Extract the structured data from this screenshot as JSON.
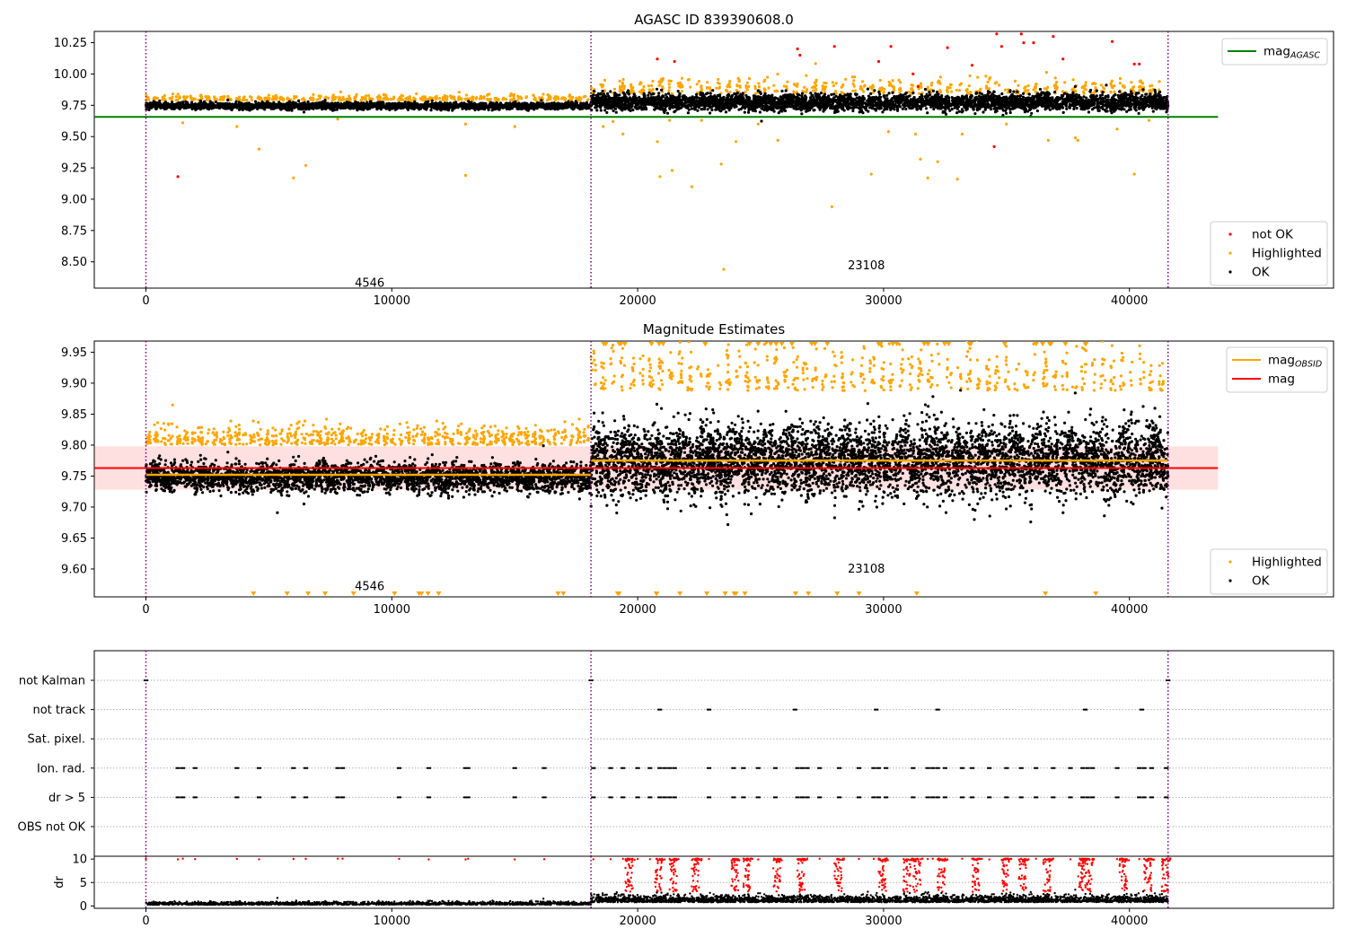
{
  "chart_data": [
    {
      "type": "scatter",
      "title": "AGASC ID 839390608.0",
      "xlim": [
        -2100,
        48300
      ],
      "ylim": [
        8.29,
        10.34
      ],
      "x_ticks": [
        0,
        10000,
        20000,
        30000,
        40000
      ],
      "x_tick_labels": [
        "0",
        "10000",
        "20000",
        "30000",
        "40000"
      ],
      "y_ticks": [
        8.5,
        8.75,
        9.0,
        9.25,
        9.5,
        9.75,
        10.0,
        10.25
      ],
      "y_tick_labels": [
        "8.50",
        "8.75",
        "9.00",
        "9.25",
        "9.50",
        "9.75",
        "10.00",
        "10.25"
      ],
      "obs_boundaries": [
        0,
        18100,
        41570
      ],
      "obs_labels": [
        {
          "text": "4546",
          "x": 9100,
          "y": 8.33
        },
        {
          "text": "23108",
          "x": 29300,
          "y": 8.47
        }
      ],
      "lines": [
        {
          "name": "mag_AGASC",
          "color": "#008000",
          "y": 9.657,
          "x": [
            -2100,
            43600
          ]
        }
      ],
      "segments": [
        {
          "x": [
            0,
            18100
          ],
          "center": 9.745,
          "spread": 0.016,
          "highlight_band": 9.795,
          "highlight_spread": 0.02
        },
        {
          "x": [
            18100,
            41570
          ],
          "center": 9.775,
          "spread": 0.04,
          "highlight_band": 9.86,
          "highlight_spread": 0.06
        }
      ],
      "outliers_orange": [
        [
          1500,
          9.61
        ],
        [
          3700,
          9.58
        ],
        [
          4600,
          9.4
        ],
        [
          6000,
          9.17
        ],
        [
          6500,
          9.27
        ],
        [
          7800,
          9.64
        ],
        [
          13000,
          9.6
        ],
        [
          13000,
          9.19
        ],
        [
          15000,
          9.58
        ],
        [
          18600,
          9.58
        ],
        [
          19000,
          9.62
        ],
        [
          19400,
          9.52
        ],
        [
          20800,
          9.46
        ],
        [
          20900,
          9.18
        ],
        [
          21300,
          9.63
        ],
        [
          21400,
          9.23
        ],
        [
          22200,
          9.1
        ],
        [
          22600,
          9.63
        ],
        [
          23400,
          9.28
        ],
        [
          23500,
          8.44
        ],
        [
          24000,
          9.46
        ],
        [
          24900,
          9.6
        ],
        [
          25700,
          9.47
        ],
        [
          27900,
          8.94
        ],
        [
          29500,
          9.2
        ],
        [
          30200,
          9.54
        ],
        [
          31300,
          9.52
        ],
        [
          31500,
          9.32
        ],
        [
          31800,
          9.17
        ],
        [
          32200,
          9.3
        ],
        [
          33000,
          9.16
        ],
        [
          33200,
          9.52
        ],
        [
          35000,
          9.6
        ],
        [
          36700,
          9.47
        ],
        [
          37800,
          9.49
        ],
        [
          37900,
          9.47
        ],
        [
          39500,
          9.56
        ],
        [
          40200,
          9.2
        ],
        [
          40800,
          9.63
        ]
      ],
      "outliers_red": [
        [
          1300,
          9.18
        ],
        [
          20800,
          10.12
        ],
        [
          21500,
          10.1
        ],
        [
          26500,
          10.2
        ],
        [
          26600,
          10.15
        ],
        [
          28000,
          10.22
        ],
        [
          30300,
          10.22
        ],
        [
          31200,
          10.0
        ],
        [
          32600,
          10.21
        ],
        [
          33600,
          10.07
        ],
        [
          34600,
          10.32
        ],
        [
          34800,
          10.22
        ],
        [
          35600,
          10.32
        ],
        [
          35700,
          10.25
        ],
        [
          36100,
          10.25
        ],
        [
          36900,
          10.3
        ],
        [
          37300,
          10.12
        ],
        [
          39300,
          10.26
        ],
        [
          40200,
          10.08
        ],
        [
          40400,
          10.08
        ],
        [
          34500,
          9.42
        ],
        [
          29800,
          10.1
        ],
        [
          31400,
          9.9
        ]
      ],
      "legend": [
        {
          "label": "mag",
          "sub": "AGASC",
          "color": "#008000",
          "kind": "line"
        },
        {
          "label": "not OK",
          "color": "#ff0000",
          "kind": "dot"
        },
        {
          "label": "Highlighted",
          "color": "#ffa500",
          "kind": "dot"
        },
        {
          "label": "OK",
          "color": "#000000",
          "kind": "dot"
        }
      ]
    },
    {
      "type": "scatter",
      "title": "Magnitude Estimates",
      "xlim": [
        -2100,
        48300
      ],
      "ylim": [
        9.555,
        9.968
      ],
      "x_ticks": [
        0,
        10000,
        20000,
        30000,
        40000
      ],
      "x_tick_labels": [
        "0",
        "10000",
        "20000",
        "30000",
        "40000"
      ],
      "y_ticks": [
        9.6,
        9.65,
        9.7,
        9.75,
        9.8,
        9.85,
        9.9,
        9.95
      ],
      "y_tick_labels": [
        "9.60",
        "9.65",
        "9.70",
        "9.75",
        "9.80",
        "9.85",
        "9.90",
        "9.95"
      ],
      "obs_boundaries": [
        0,
        18100,
        41570
      ],
      "obs_labels": [
        {
          "text": "4546",
          "x": 9100,
          "y": 9.572
        },
        {
          "text": "23108",
          "x": 29300,
          "y": 9.6
        }
      ],
      "mag": {
        "value": 9.763,
        "band": [
          9.728,
          9.798
        ],
        "x": [
          -2100,
          43600
        ],
        "color": "#ff0000"
      },
      "mag_obsid": [
        {
          "x": [
            0,
            18100
          ],
          "y": 9.752
        },
        {
          "x": [
            18100,
            41570
          ],
          "y": 9.775
        }
      ],
      "segments": [
        {
          "x": [
            0,
            18100
          ],
          "center": 9.748,
          "spread": 0.014,
          "highlight_band": 9.805,
          "highlight_spread": 0.015
        },
        {
          "x": [
            18100,
            41570
          ],
          "center": 9.775,
          "spread": 0.035,
          "highlight_band": 9.9,
          "highlight_spread": 0.04
        }
      ],
      "legend": [
        {
          "label": "mag",
          "sub": "OBSID",
          "color": "#ffa500",
          "kind": "line"
        },
        {
          "label": "mag",
          "color": "#ff0000",
          "kind": "line"
        },
        {
          "label": "Highlighted",
          "color": "#ffa500",
          "kind": "dot"
        },
        {
          "label": "OK",
          "color": "#000000",
          "kind": "dot"
        }
      ]
    },
    {
      "type": "scatter",
      "title": "",
      "xlim": [
        -2100,
        48300
      ],
      "categories": [
        "not Kalman",
        "not track",
        "Sat. pixel.",
        "Ion. rad.",
        "dr > 5",
        "OBS not OK"
      ],
      "obs_boundaries": [
        0,
        18100,
        41570
      ],
      "flag_points": {
        "not Kalman": [
          0,
          18100,
          41570
        ],
        "not track": [
          20900,
          22900,
          26400,
          29700,
          32200,
          38200,
          40500
        ],
        "Sat. pixel.": [],
        "Ion. rad.": [
          1300,
          1500,
          2000,
          3700,
          4600,
          6000,
          6500,
          7800,
          8000,
          10300,
          11500,
          13000,
          13100,
          15000,
          16200,
          18200,
          18900,
          19400,
          20000,
          20500,
          20900,
          21100,
          21300,
          21500,
          22900,
          23900,
          24300,
          24900,
          25600,
          26500,
          26700,
          26900,
          27400,
          28200,
          29000,
          29600,
          29800,
          30100,
          31200,
          31800,
          32000,
          32200,
          32500,
          33200,
          33600,
          34300,
          35000,
          35600,
          36200,
          36900,
          37600,
          38100,
          38300,
          38500,
          39500,
          40400,
          40600,
          40900,
          41500
        ],
        "dr > 5": [
          1300,
          1500,
          2000,
          3700,
          4600,
          6000,
          6500,
          7800,
          8000,
          10300,
          11500,
          13000,
          13100,
          15000,
          16200,
          18200,
          18900,
          19400,
          20000,
          20500,
          20900,
          21100,
          21300,
          21500,
          22900,
          23900,
          24300,
          24900,
          25600,
          26500,
          26700,
          26900,
          27400,
          28200,
          29000,
          29600,
          29800,
          30100,
          31200,
          31800,
          32000,
          32200,
          32500,
          33200,
          33600,
          34300,
          35000,
          35600,
          36200,
          36900,
          37600,
          38100,
          38300,
          38500,
          39500,
          40400,
          40600,
          40900,
          41500
        ],
        "OBS not OK": []
      }
    },
    {
      "type": "scatter",
      "title": "",
      "ylabel": "dr",
      "xlim": [
        -2100,
        48300
      ],
      "ylim": [
        -0.5,
        10.6
      ],
      "x_ticks": [
        0,
        10000,
        20000,
        30000,
        40000
      ],
      "x_tick_labels": [
        "0",
        "10000",
        "20000",
        "30000",
        "40000"
      ],
      "y_ticks": [
        0,
        5,
        10
      ],
      "y_tick_labels": [
        "0",
        "5",
        "10"
      ],
      "obs_boundaries": [
        0,
        18100,
        41570
      ],
      "segments": [
        {
          "x": [
            0,
            18100
          ],
          "center": 0.35,
          "spread": 0.3
        },
        {
          "x": [
            18100,
            41570
          ],
          "center": 1.0,
          "spread": 0.7
        }
      ],
      "red_points_at_10": [
        0,
        1300,
        1500,
        2000,
        3700,
        4600,
        6000,
        6500,
        7800,
        8000,
        10300,
        11500,
        13000,
        13100,
        15000,
        16200,
        18200,
        18900,
        19400,
        20000,
        20500,
        20900,
        21100,
        21300,
        21500,
        22900,
        23900,
        24300,
        24900,
        25600,
        26500,
        26700,
        26900,
        27400,
        28200,
        29000,
        29600,
        29800,
        30100,
        31200,
        31800,
        32000,
        32200,
        32500,
        33200,
        33600,
        34300,
        35000,
        35600,
        36200,
        36900,
        37600,
        38100,
        38300,
        38500,
        39500,
        40400,
        40600,
        40900,
        41500
      ],
      "red_columns": [
        19500,
        20700,
        21300,
        22200,
        23800,
        24300,
        25500,
        26500,
        28000,
        29800,
        30800,
        31200,
        32200,
        33600,
        34800,
        35500,
        36500,
        37900,
        38200,
        39600,
        40600,
        41300
      ]
    }
  ]
}
